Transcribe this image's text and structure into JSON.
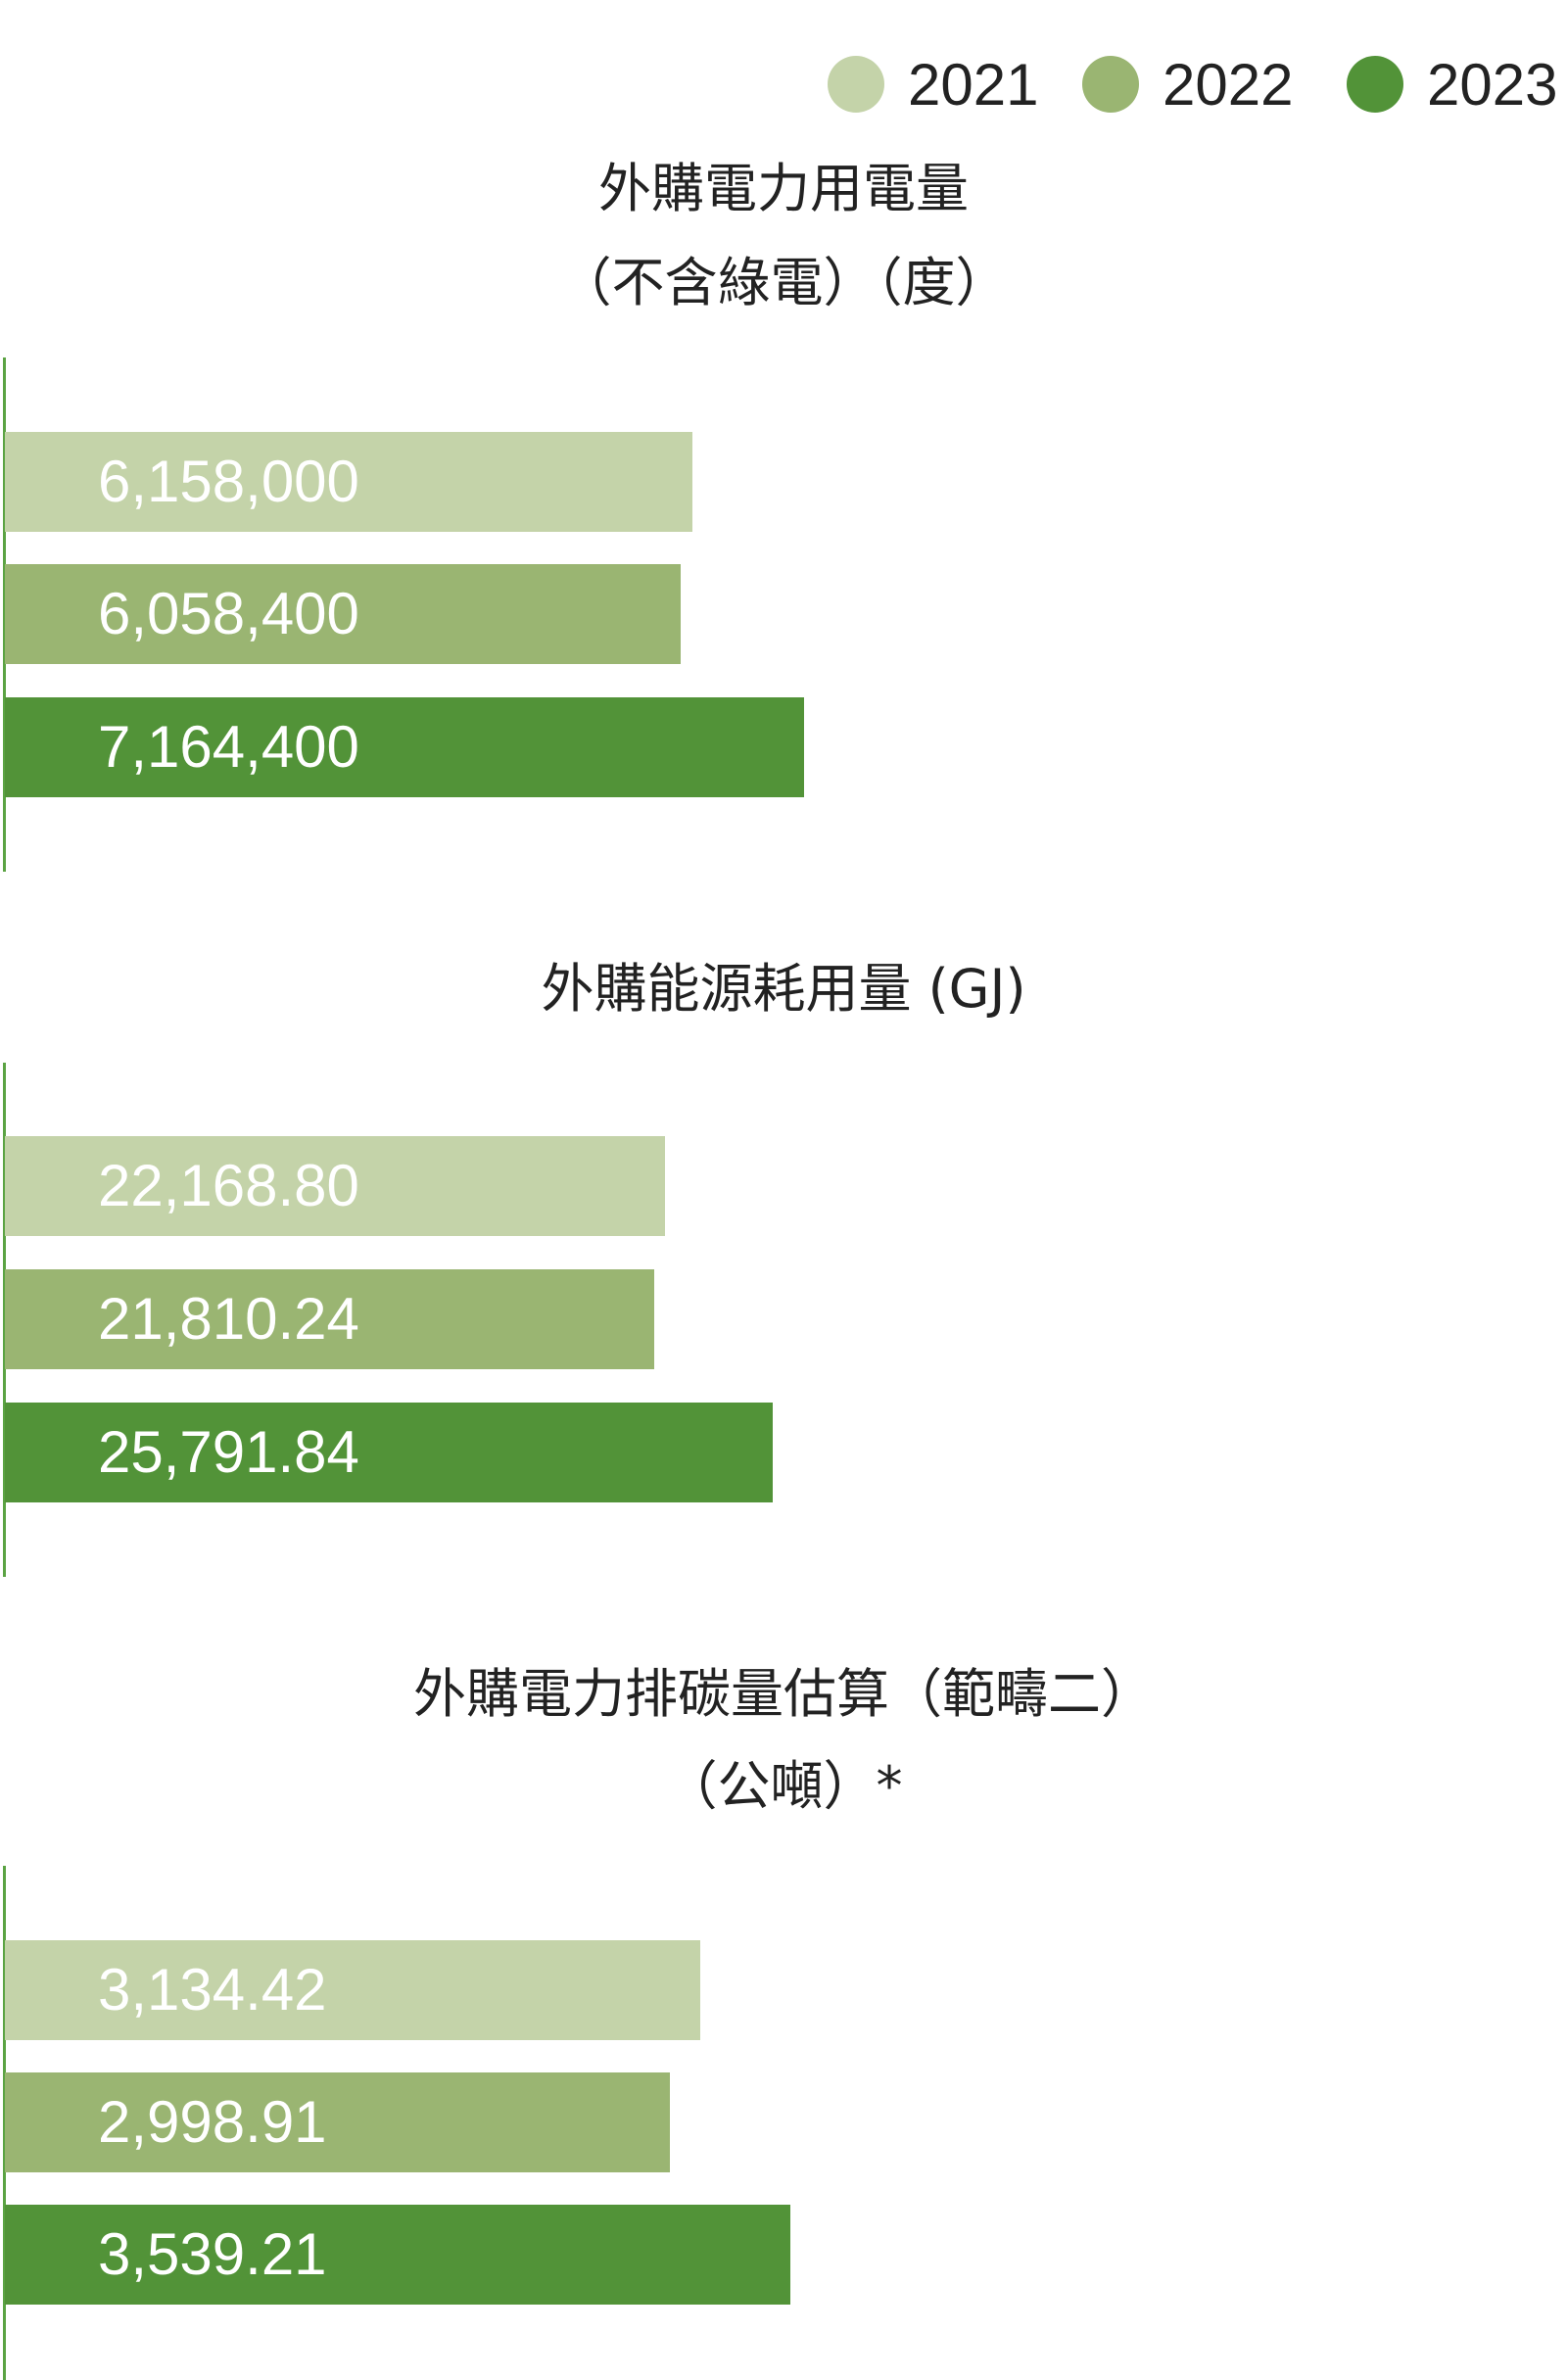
{
  "legend": [
    {
      "label": "2021",
      "color": "#c4d3a9"
    },
    {
      "label": "2022",
      "color": "#9ab572"
    },
    {
      "label": "2023",
      "color": "#529338"
    }
  ],
  "chart_data": [
    {
      "type": "bar",
      "orientation": "horizontal",
      "title": [
        "外購電力用電量",
        "（不含綠電）（度）"
      ],
      "categories": [
        "2021",
        "2022",
        "2023"
      ],
      "values": [
        6158000,
        6058400,
        7164400
      ],
      "data_labels": [
        "6,158,000",
        "6,058,400",
        "7,164,400"
      ],
      "xlim": [
        0,
        14000000
      ]
    },
    {
      "type": "bar",
      "orientation": "horizontal",
      "title": [
        "外購能源耗用量 (GJ)"
      ],
      "categories": [
        "2021",
        "2022",
        "2023"
      ],
      "values": [
        22168.8,
        21810.24,
        25791.84
      ],
      "data_labels": [
        "22,168.80",
        "21,810.24",
        "25,791.84"
      ],
      "xlim": [
        0,
        52500
      ]
    },
    {
      "type": "bar",
      "orientation": "horizontal",
      "title": [
        "外購電力排碳量估算（範疇二）",
        "（公噸）*"
      ],
      "categories": [
        "2021",
        "2022",
        "2023"
      ],
      "values": [
        3134.42,
        2998.91,
        3539.21
      ],
      "data_labels": [
        "3,134.42",
        "2,998.91",
        "3,539.21"
      ],
      "xlim": [
        0,
        7040
      ]
    }
  ]
}
